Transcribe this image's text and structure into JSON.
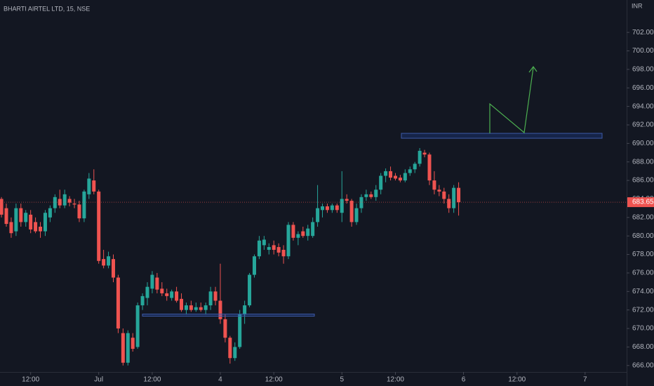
{
  "chart_data": {
    "type": "candlestick",
    "title": "BHARTI AIRTEL LTD, 15, NSE",
    "currency": "INR",
    "up_color": "#26a69a",
    "down_color": "#ef5350",
    "xlim": [
      -0.3,
      128.4
    ],
    "xticks": [
      {
        "value": 6,
        "label": "12:00"
      },
      {
        "value": 20,
        "label": "Jul"
      },
      {
        "value": 31,
        "label": "12:00"
      },
      {
        "value": 45,
        "label": "4"
      },
      {
        "value": 56,
        "label": "12:00"
      },
      {
        "value": 70,
        "label": "5"
      },
      {
        "value": 81,
        "label": "12:00"
      },
      {
        "value": 95,
        "label": "6"
      },
      {
        "value": 106,
        "label": "12:00"
      },
      {
        "value": 120,
        "label": "7"
      }
    ],
    "ylim": [
      665.3,
      705.5
    ],
    "yticks": [
      {
        "value": 666,
        "label": "666.00"
      },
      {
        "value": 668,
        "label": "668.00"
      },
      {
        "value": 670,
        "label": "670.00"
      },
      {
        "value": 672,
        "label": "672.00"
      },
      {
        "value": 674,
        "label": "674.00"
      },
      {
        "value": 676,
        "label": "676.00"
      },
      {
        "value": 678,
        "label": "678.00"
      },
      {
        "value": 680,
        "label": "680.00"
      },
      {
        "value": 682,
        "label": "682.00"
      },
      {
        "value": 684,
        "label": "684.00"
      },
      {
        "value": 686,
        "label": "686.00"
      },
      {
        "value": 688,
        "label": "688.00"
      },
      {
        "value": 690,
        "label": "690.00"
      },
      {
        "value": 692,
        "label": "692.00"
      },
      {
        "value": 694,
        "label": "694.00"
      },
      {
        "value": 696,
        "label": "696.00"
      },
      {
        "value": 698,
        "label": "698.00"
      },
      {
        "value": 700,
        "label": "700.00"
      },
      {
        "value": 702,
        "label": "702.00"
      }
    ],
    "open": [
      684.0,
      683.0,
      681.5,
      680.5,
      683.0,
      681.5,
      682.3,
      681.5,
      681.0,
      680.5,
      682.0,
      683.0,
      684.0,
      683.3,
      684.0,
      683.5,
      683.4,
      681.9,
      684.5,
      686.0,
      684.8,
      677.5,
      676.8,
      677.5,
      675.5,
      669.5,
      666.3,
      669.0,
      668.0,
      672.5,
      673.3,
      674.3,
      675.5,
      674.3,
      673.8,
      673.3,
      674.0,
      673.2,
      672.0,
      672.5,
      672.0,
      672.3,
      672.0,
      672.5,
      674.0,
      673.0,
      671.0,
      669.0,
      666.8,
      668.0,
      671.5,
      672.5,
      675.8,
      677.8,
      679.0,
      678.5,
      679.0,
      678.8,
      678.5,
      677.8,
      681.2,
      679.8,
      680.5,
      680.0,
      680.0,
      681.5,
      682.8,
      683.2,
      682.8,
      683.3,
      682.5,
      684.0,
      683.8,
      681.5,
      683.0,
      684.2,
      684.5,
      684.2,
      685.0,
      686.5,
      687.0,
      686.5,
      686.3,
      686.0,
      686.8,
      687.2,
      687.8,
      689.0,
      688.8,
      686.0,
      685.0,
      684.8,
      684.0,
      683.0,
      685.2
    ],
    "high": [
      684.2,
      683.5,
      682.0,
      683.5,
      683.5,
      682.8,
      682.8,
      682.0,
      681.5,
      682.8,
      683.3,
      684.5,
      685.0,
      685.0,
      684.3,
      684.0,
      683.8,
      685.0,
      686.8,
      687.2,
      685.0,
      678.5,
      678.3,
      678.0,
      675.8,
      670.0,
      669.8,
      669.5,
      672.8,
      673.8,
      675.0,
      676.2,
      676.0,
      675.0,
      674.3,
      674.2,
      674.5,
      673.8,
      672.8,
      673.0,
      672.8,
      672.8,
      672.8,
      674.5,
      674.5,
      677.0,
      671.5,
      669.2,
      668.5,
      672.0,
      673.0,
      676.0,
      678.0,
      680.0,
      680.0,
      679.2,
      679.5,
      679.2,
      679.0,
      681.5,
      681.5,
      680.5,
      681.0,
      681.2,
      682.0,
      685.5,
      683.5,
      683.5,
      683.5,
      683.5,
      687.0,
      684.5,
      684.0,
      683.5,
      684.5,
      685.0,
      684.8,
      685.5,
      686.8,
      687.3,
      687.5,
      686.8,
      686.6,
      687.2,
      687.5,
      688.0,
      689.5,
      689.3,
      689.0,
      687.0,
      685.5,
      685.2,
      684.5,
      685.5,
      685.8
    ],
    "low": [
      682.0,
      681.0,
      679.8,
      680.0,
      681.0,
      681.0,
      680.3,
      680.3,
      679.8,
      680.0,
      681.5,
      682.5,
      683.0,
      683.0,
      683.2,
      683.0,
      681.5,
      681.5,
      684.0,
      684.5,
      677.0,
      676.5,
      676.5,
      675.0,
      669.5,
      666.0,
      666.0,
      667.5,
      667.8,
      672.0,
      672.5,
      673.8,
      673.8,
      673.5,
      673.0,
      673.0,
      672.8,
      671.8,
      671.5,
      671.8,
      671.8,
      671.8,
      671.5,
      672.0,
      672.5,
      670.5,
      668.5,
      666.2,
      666.5,
      667.8,
      670.5,
      672.3,
      675.5,
      677.5,
      678.5,
      678.0,
      678.0,
      677.8,
      677.0,
      677.5,
      679.5,
      679.0,
      679.8,
      679.5,
      679.8,
      681.0,
      682.0,
      682.5,
      682.5,
      682.5,
      681.5,
      683.5,
      681.0,
      681.2,
      682.5,
      683.8,
      684.0,
      683.8,
      684.5,
      685.8,
      686.0,
      686.0,
      685.8,
      685.8,
      686.5,
      686.8,
      687.5,
      688.5,
      685.5,
      684.5,
      684.3,
      683.5,
      682.5,
      682.5,
      682.2
    ],
    "close": [
      682.3,
      681.3,
      680.3,
      683.0,
      681.5,
      682.5,
      680.7,
      680.5,
      680.5,
      682.5,
      683.0,
      684.2,
      683.3,
      684.5,
      683.6,
      683.4,
      681.9,
      684.8,
      686.2,
      684.8,
      677.3,
      676.8,
      677.8,
      675.5,
      670.0,
      666.3,
      669.5,
      667.8,
      672.5,
      673.5,
      674.5,
      675.8,
      674.2,
      673.8,
      673.5,
      674.0,
      673.0,
      672.0,
      672.5,
      672.0,
      672.3,
      672.0,
      672.5,
      674.0,
      673.0,
      671.0,
      669.0,
      666.8,
      668.0,
      671.5,
      672.5,
      675.8,
      677.8,
      679.5,
      679.6,
      678.8,
      678.5,
      678.2,
      677.8,
      681.2,
      679.8,
      680.2,
      680.0,
      680.8,
      681.5,
      683.0,
      683.2,
      682.8,
      683.3,
      682.8,
      684.0,
      683.8,
      681.5,
      683.0,
      684.2,
      684.5,
      684.2,
      685.0,
      686.5,
      687.0,
      686.3,
      686.2,
      686.0,
      686.8,
      687.2,
      687.8,
      689.2,
      688.8,
      686.0,
      685.0,
      684.8,
      684.0,
      683.0,
      685.2,
      683.65
    ],
    "last_close_label": "683.65"
  }
}
